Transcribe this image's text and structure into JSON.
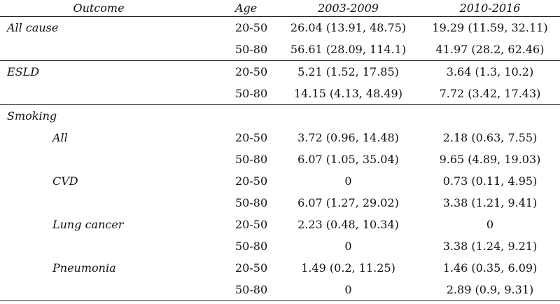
{
  "table": {
    "columns": [
      "Outcome",
      "Age",
      "2003-2009",
      "2010-2016"
    ],
    "rows": [
      {
        "outcome": "All cause",
        "age": "20-50",
        "p1": "26.04 (13.91, 48.75)",
        "p2": "19.29 (11.59, 32.11)"
      },
      {
        "outcome": "",
        "age": "50-80",
        "p1": "56.61 (28.09, 114.1)",
        "p2": "41.97 (28.2, 62.46)"
      },
      {
        "outcome": "ESLD",
        "age": "20-50",
        "p1": "5.21 (1.52, 17.85)",
        "p2": "3.64 (1.3, 10.2)"
      },
      {
        "outcome": "",
        "age": "50-80",
        "p1": "14.15 (4.13, 48.49)",
        "p2": "7.72 (3.42, 17.43)"
      },
      {
        "outcome": "Smoking",
        "age": "",
        "p1": "",
        "p2": ""
      },
      {
        "outcome": "All",
        "age": "20-50",
        "p1": "3.72 (0.96, 14.48)",
        "p2": "2.18 (0.63, 7.55)"
      },
      {
        "outcome": "",
        "age": "50-80",
        "p1": "6.07 (1.05, 35.04)",
        "p2": "9.65 (4.89, 19.03)"
      },
      {
        "outcome": "CVD",
        "age": "20-50",
        "p1": "0",
        "p2": "0.73 (0.11, 4.95)"
      },
      {
        "outcome": "",
        "age": "50-80",
        "p1": "6.07 (1.27, 29.02)",
        "p2": "3.38 (1.21, 9.41)"
      },
      {
        "outcome": "Lung cancer",
        "age": "20-50",
        "p1": "2.23 (0.48, 10.34)",
        "p2": "0"
      },
      {
        "outcome": "",
        "age": "50-80",
        "p1": "0",
        "p2": "3.38 (1.24, 9.21)"
      },
      {
        "outcome": "Pneumonia",
        "age": "20-50",
        "p1": "1.49 (0.2, 11.25)",
        "p2": "1.46 (0.35, 6.09)"
      },
      {
        "outcome": "",
        "age": "50-80",
        "p1": "0",
        "p2": "2.89 (0.9, 9.31)"
      }
    ]
  }
}
